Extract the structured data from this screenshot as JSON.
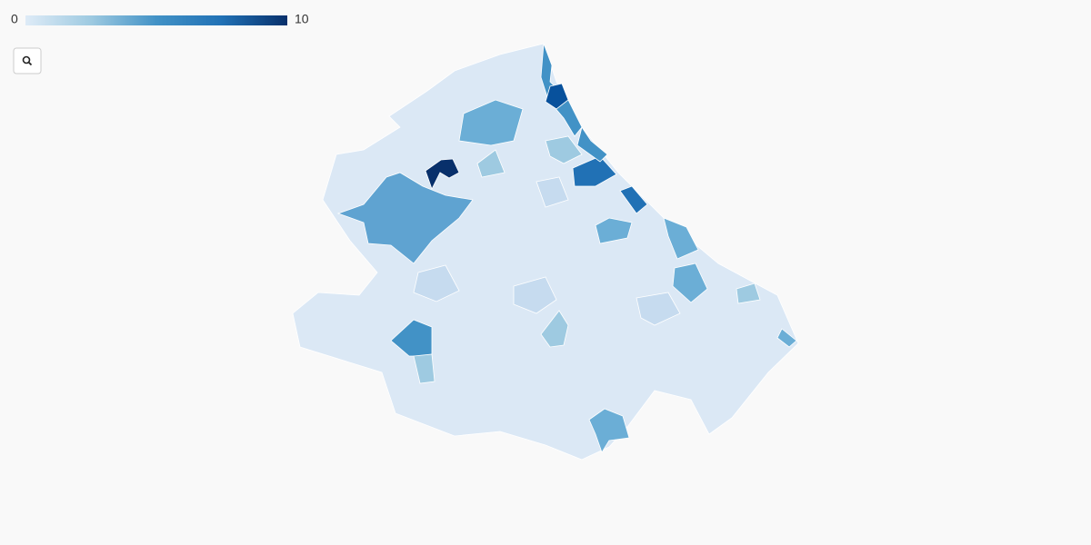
{
  "legend": {
    "min": 0,
    "max": 10,
    "colors": [
      "#deebf7",
      "#9ecae1",
      "#4292c6",
      "#2171b5",
      "#08306b"
    ]
  }
}
